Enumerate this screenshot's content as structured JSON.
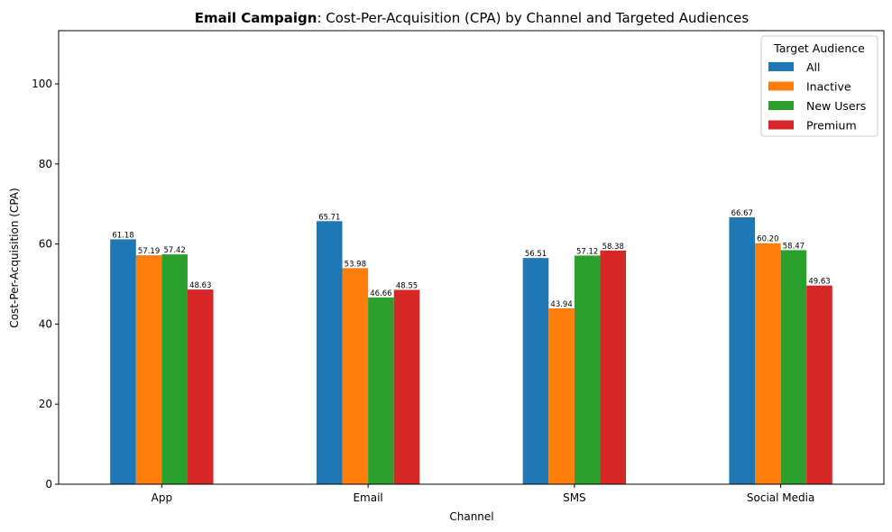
{
  "chart_data": {
    "type": "bar",
    "title_bold": "Email Campaign",
    "title_rest": ": Cost-Per-Acquisition (CPA) by Channel and Targeted Audiences",
    "xlabel": "Channel",
    "ylabel": "Cost-Per-Acquisition (CPA)",
    "categories": [
      "App",
      "Email",
      "SMS",
      "Social Media"
    ],
    "ylim": [
      0,
      113.3
    ],
    "yticks": [
      0,
      20,
      40,
      60,
      80,
      100
    ],
    "legend_title": "Target Audience",
    "legend_position": "top-right",
    "grid": false,
    "series": [
      {
        "name": "All",
        "color": "#1f77b4",
        "values": [
          61.18,
          65.71,
          56.51,
          66.67
        ],
        "labels": [
          "61.18",
          "65.71",
          "56.51",
          "66.67"
        ]
      },
      {
        "name": "Inactive",
        "color": "#ff7f0e",
        "values": [
          57.19,
          53.98,
          43.94,
          60.2
        ],
        "labels": [
          "57.19",
          "53.98",
          "43.94",
          "60.20"
        ]
      },
      {
        "name": "New Users",
        "color": "#2ca02c",
        "values": [
          57.42,
          46.66,
          57.12,
          58.47
        ],
        "labels": [
          "57.42",
          "46.66",
          "57.12",
          "58.47"
        ]
      },
      {
        "name": "Premium",
        "color": "#d62728",
        "values": [
          48.63,
          48.55,
          58.38,
          49.63
        ],
        "labels": [
          "48.63",
          "48.55",
          "58.38",
          "49.63"
        ]
      }
    ]
  }
}
